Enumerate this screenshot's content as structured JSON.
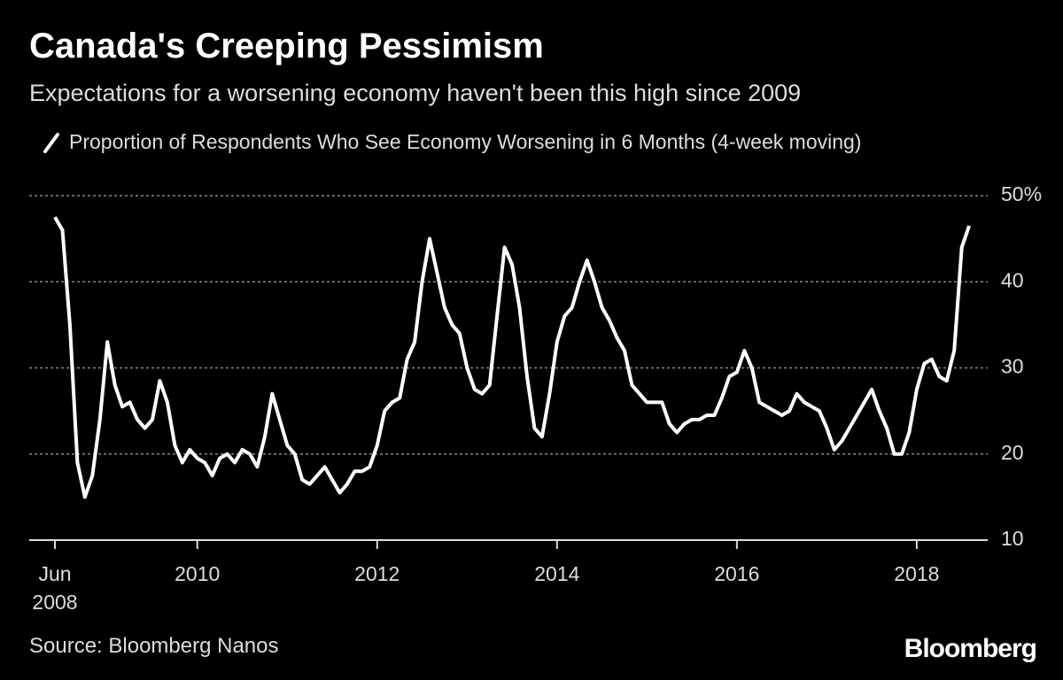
{
  "title": "Canada's Creeping Pessimism",
  "subtitle": "Expectations for a worsening economy haven't been this high since 2009",
  "source": "Source: Bloomberg Nanos",
  "brand": "Bloomberg",
  "chart_data": {
    "type": "line",
    "x": [
      "2008-06",
      "2008-07",
      "2008-08",
      "2008-09",
      "2008-10",
      "2008-11",
      "2008-12",
      "2009-01",
      "2009-02",
      "2009-03",
      "2009-04",
      "2009-05",
      "2009-06",
      "2009-07",
      "2009-08",
      "2009-09",
      "2009-10",
      "2009-11",
      "2009-12",
      "2010-01",
      "2010-02",
      "2010-03",
      "2010-04",
      "2010-05",
      "2010-06",
      "2010-07",
      "2010-08",
      "2010-09",
      "2010-10",
      "2010-11",
      "2010-12",
      "2011-01",
      "2011-02",
      "2011-03",
      "2011-04",
      "2011-05",
      "2011-06",
      "2011-07",
      "2011-08",
      "2011-09",
      "2011-10",
      "2011-11",
      "2011-12",
      "2012-01",
      "2012-02",
      "2012-03",
      "2012-04",
      "2012-05",
      "2012-06",
      "2012-07",
      "2012-08",
      "2012-09",
      "2012-10",
      "2012-11",
      "2012-12",
      "2013-01",
      "2013-02",
      "2013-03",
      "2013-04",
      "2013-05",
      "2013-06",
      "2013-07",
      "2013-08",
      "2013-09",
      "2013-10",
      "2013-11",
      "2013-12",
      "2014-01",
      "2014-02",
      "2014-03",
      "2014-04",
      "2014-05",
      "2014-06",
      "2014-07",
      "2014-08",
      "2014-09",
      "2014-10",
      "2014-11",
      "2014-12",
      "2015-01",
      "2015-02",
      "2015-03",
      "2015-04",
      "2015-05",
      "2015-06",
      "2015-07",
      "2015-08",
      "2015-09",
      "2015-10",
      "2015-11",
      "2015-12",
      "2016-01",
      "2016-02",
      "2016-03",
      "2016-04",
      "2016-05",
      "2016-06",
      "2016-07",
      "2016-08",
      "2016-09",
      "2016-10",
      "2016-11",
      "2016-12",
      "2017-01",
      "2017-02",
      "2017-03",
      "2017-04",
      "2017-05",
      "2017-06",
      "2017-07",
      "2017-08",
      "2017-09",
      "2017-10",
      "2017-11",
      "2017-12",
      "2018-01",
      "2018-02",
      "2018-03",
      "2018-04",
      "2018-05",
      "2018-06",
      "2018-07",
      "2018-08"
    ],
    "series": [
      {
        "name": "Proportion of Respondents Who See Economy Worsening in 6 Months (4-week moving)",
        "color": "#ffffff",
        "values": [
          47.5,
          46,
          35,
          19,
          15,
          17.5,
          24,
          33,
          28,
          25.5,
          26,
          24,
          23,
          24,
          28.5,
          26,
          21,
          19,
          20.5,
          19.5,
          19,
          17.5,
          19.5,
          20,
          19,
          20.5,
          20,
          18.5,
          22,
          27,
          24,
          21,
          20,
          17,
          16.5,
          17.5,
          18.5,
          17,
          15.5,
          16.5,
          18,
          18,
          18.5,
          21,
          25,
          26,
          26.5,
          31,
          33,
          40,
          45,
          41,
          37,
          35,
          34,
          30,
          27.5,
          27,
          28,
          36,
          44,
          42,
          37,
          29,
          23,
          22,
          27,
          33,
          36,
          37,
          40,
          42.5,
          40,
          37,
          35.5,
          33.5,
          32,
          28,
          27,
          26,
          26,
          26,
          23.5,
          22.5,
          23.5,
          24,
          24,
          24.5,
          24.5,
          26.5,
          29,
          29.5,
          32,
          30,
          26,
          25.5,
          25,
          24.5,
          25,
          27,
          26,
          25.5,
          25,
          23,
          20.5,
          21.5,
          23,
          24.5,
          26,
          27.5,
          25,
          23,
          20,
          20,
          22.5,
          27.5,
          30.5,
          31,
          29,
          28.5,
          32,
          44,
          46.5
        ]
      }
    ],
    "ylim": [
      10,
      50
    ],
    "yticks": [
      10,
      20,
      30,
      40,
      {
        "value": 50,
        "label": "50%"
      }
    ],
    "xticks": [
      {
        "value": "2008-06",
        "label": "Jun 2008"
      },
      {
        "value": "2010-01",
        "label": "2010"
      },
      {
        "value": "2012-01",
        "label": "2012"
      },
      {
        "value": "2014-01",
        "label": "2014"
      },
      {
        "value": "2016-01",
        "label": "2016"
      },
      {
        "value": "2018-01",
        "label": "2018"
      }
    ],
    "grid": true
  }
}
